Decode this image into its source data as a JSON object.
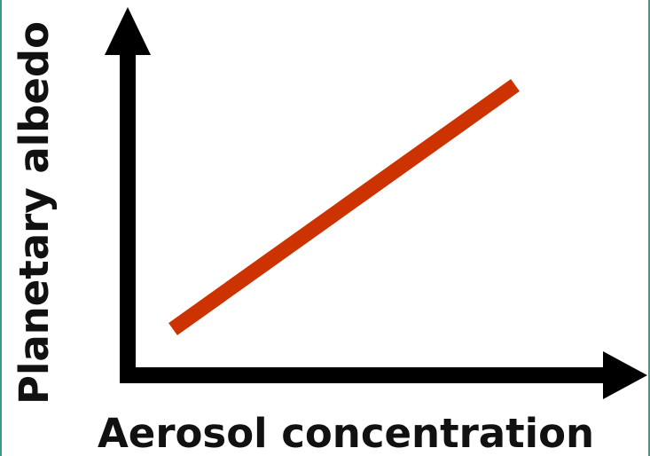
{
  "x_label": "Aerosol concentration",
  "y_label": "Planetary albedo"
}
